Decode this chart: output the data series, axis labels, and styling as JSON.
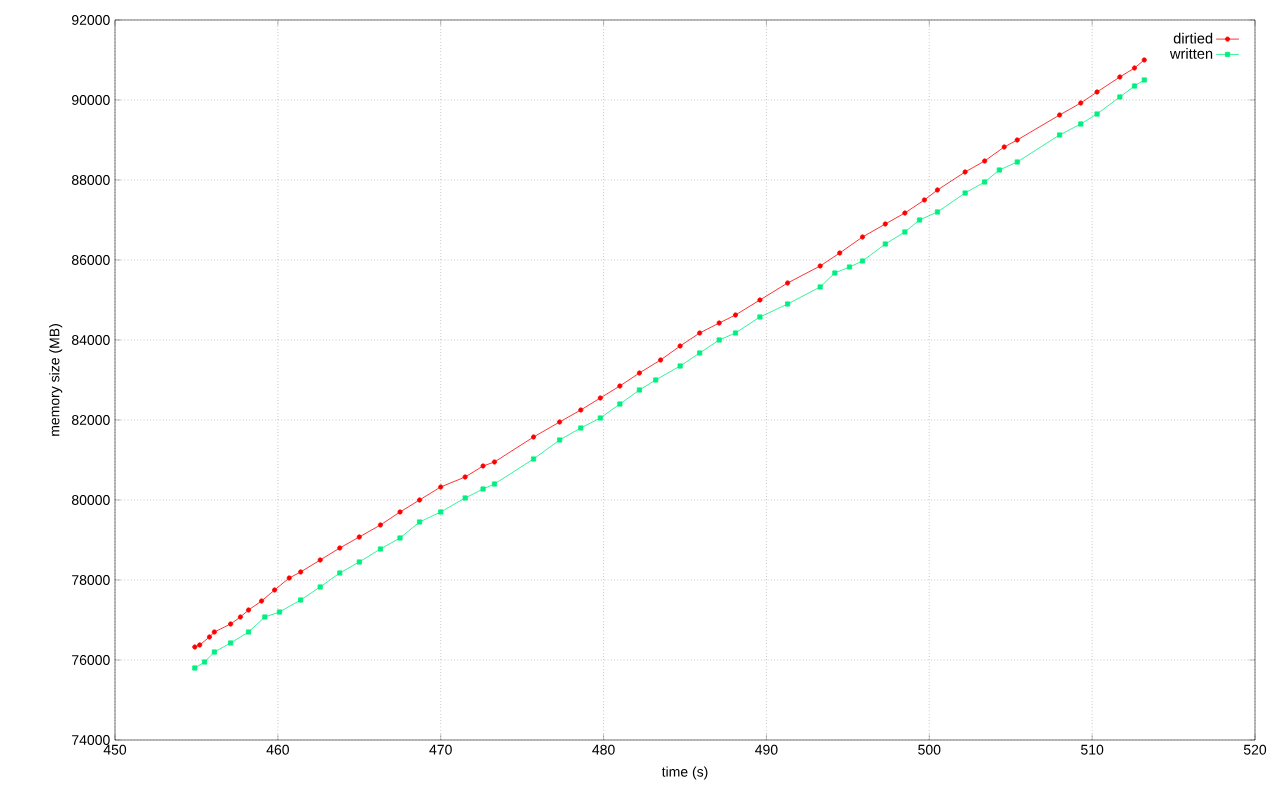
{
  "chart_data": {
    "type": "line",
    "xlabel": "time (s)",
    "ylabel": "memory size (MB)",
    "xlim": [
      450,
      520
    ],
    "xticks": [
      450,
      460,
      470,
      480,
      490,
      500,
      510,
      520
    ],
    "ylim": [
      74000,
      92000
    ],
    "yticks": [
      74000,
      76000,
      78000,
      80000,
      82000,
      84000,
      86000,
      88000,
      90000,
      92000
    ],
    "grid": true,
    "legend": "top right",
    "line_style": "solid",
    "series": [
      {
        "name": "dirtied",
        "color": "#ff0000",
        "marker": "circle",
        "x": [
          454.9,
          455.2,
          455.8,
          456.1,
          457.1,
          457.7,
          458.2,
          459.0,
          459.8,
          460.7,
          461.4,
          462.6,
          463.8,
          465.0,
          466.3,
          467.5,
          468.7,
          470.0,
          471.5,
          472.6,
          473.3,
          475.7,
          477.3,
          478.6,
          479.8,
          481.0,
          482.2,
          483.5,
          484.7,
          485.9,
          487.1,
          488.1,
          489.6,
          491.3,
          493.3,
          494.5,
          495.9,
          497.3,
          498.5,
          499.7,
          500.5,
          502.2,
          503.4,
          504.6,
          505.4,
          508.0,
          509.3,
          510.3,
          511.7,
          512.6,
          513.2
        ],
        "values": [
          76325,
          76375,
          76575,
          76700,
          76900,
          77075,
          77250,
          77475,
          77750,
          78050,
          78200,
          78500,
          78800,
          79075,
          79375,
          79700,
          80000,
          80325,
          80575,
          80850,
          80950,
          81575,
          81950,
          82250,
          82550,
          82850,
          83175,
          83500,
          83850,
          84175,
          84425,
          84625,
          85000,
          85425,
          85850,
          86175,
          86575,
          86900,
          87175,
          87500,
          87750,
          88200,
          88475,
          88825,
          89000,
          89625,
          89925,
          90200,
          90575,
          90800,
          91000
        ]
      },
      {
        "name": "written",
        "color": "#00f080",
        "marker": "square",
        "x": [
          454.9,
          455.5,
          456.1,
          457.1,
          458.2,
          459.2,
          460.1,
          461.4,
          462.6,
          463.8,
          465.0,
          466.3,
          467.5,
          468.7,
          470.0,
          471.5,
          472.6,
          473.3,
          475.7,
          477.3,
          478.6,
          479.8,
          481.0,
          482.2,
          483.2,
          484.7,
          485.9,
          487.1,
          488.1,
          489.6,
          491.3,
          493.3,
          494.2,
          495.1,
          495.9,
          497.3,
          498.5,
          499.4,
          500.5,
          502.2,
          503.4,
          504.3,
          505.4,
          508.0,
          509.3,
          510.3,
          511.7,
          512.6,
          513.2
        ],
        "values": [
          75800,
          75950,
          76200,
          76425,
          76700,
          77075,
          77200,
          77500,
          77825,
          78175,
          78450,
          78775,
          79050,
          79450,
          79700,
          80050,
          80275,
          80400,
          81025,
          81500,
          81800,
          82050,
          82400,
          82750,
          83000,
          83350,
          83675,
          84000,
          84175,
          84575,
          84900,
          85325,
          85675,
          85825,
          85975,
          86400,
          86700,
          87000,
          87200,
          87675,
          87950,
          88250,
          88450,
          89125,
          89400,
          89650,
          90075,
          90350,
          90500
        ]
      }
    ]
  }
}
